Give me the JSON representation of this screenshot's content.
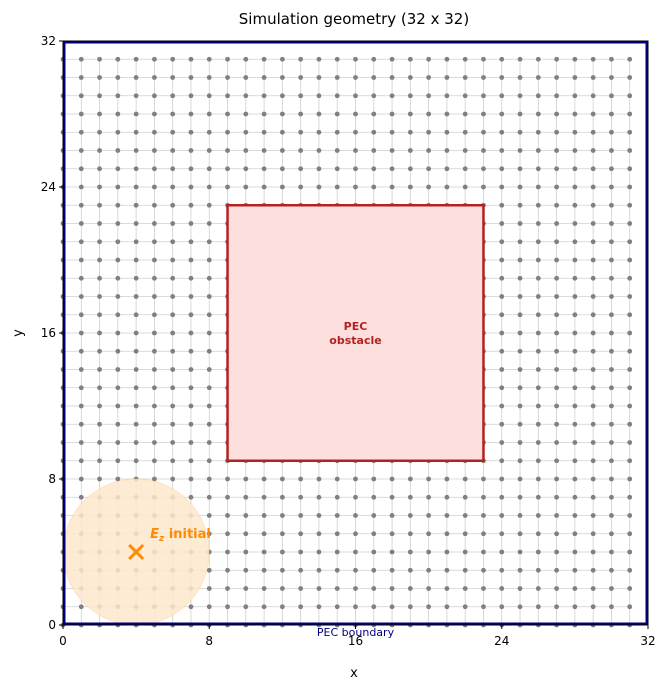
{
  "chart_data": {
    "type": "diagram",
    "title": "Simulation geometry (32 x 32)",
    "xlabel": "x",
    "ylabel": "y",
    "xlim": [
      0,
      32
    ],
    "ylim": [
      0,
      32
    ],
    "xticks": [
      0,
      8,
      16,
      24,
      32
    ],
    "yticks": [
      0,
      8,
      16,
      24,
      32
    ],
    "grid": {
      "nodes_per_axis": 32,
      "node_spacing": 1,
      "node_offset": 0,
      "line_color": "#cfcfcf",
      "node_color": "#808080"
    },
    "boundary": {
      "label": "PEC boundary",
      "color": "#00007f",
      "extent": [
        0,
        32,
        0,
        32
      ]
    },
    "obstacle": {
      "label_line1": "PEC",
      "label_line2": "obstacle",
      "x_range": [
        9,
        23
      ],
      "y_range": [
        9,
        23
      ],
      "fill_color": "#fde0dd",
      "edge_color": "#b22222"
    },
    "source": {
      "symbol": "Ez",
      "label": "E_z initial",
      "label_main": "E",
      "label_sub": "z",
      "label_rest": " initial",
      "x": 4,
      "y": 4,
      "radius": 4,
      "marker_color": "#ff8c00",
      "halo_color": "#fde8cc"
    }
  }
}
